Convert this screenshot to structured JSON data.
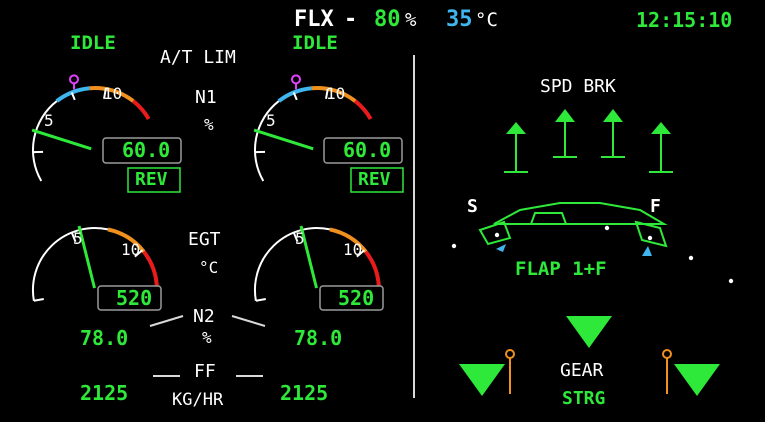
{
  "header": {
    "thrust_mode": "FLX",
    "dash": "-",
    "thrust_value": "80",
    "thrust_unit": "%",
    "flex_temp": "35",
    "temp_unit": "°C",
    "clock": "12:15:10"
  },
  "at_lim_label": "A/T LIM",
  "engines": [
    {
      "idle_label": "IDLE",
      "n1_value": "60.0",
      "n1_fraction": 0.32,
      "rev_label": "REV",
      "n1_scale": {
        "low": "5",
        "high": "10"
      },
      "egt_value": "520",
      "egt_scale": {
        "low": "5",
        "high": "10"
      },
      "n2_value": "78.0",
      "ff_value": "2125"
    },
    {
      "idle_label": "IDLE",
      "n1_value": "60.0",
      "n1_fraction": 0.32,
      "rev_label": "REV",
      "n1_scale": {
        "low": "5",
        "high": "10"
      },
      "egt_value": "520",
      "egt_scale": {
        "low": "5",
        "high": "10"
      },
      "n2_value": "78.0",
      "ff_value": "2125"
    }
  ],
  "center_labels": {
    "n1": "N1",
    "n1_unit": "%",
    "egt": "EGT",
    "egt_unit": "°C",
    "n2": "N2",
    "n2_unit": "%",
    "ff": "FF",
    "ff_unit": "KG/HR"
  },
  "speedbrake": {
    "label": "SPD BRK"
  },
  "flaps": {
    "slat_label": "S",
    "flap_label": "F",
    "config": "FLAP 1+F"
  },
  "gear": {
    "label": "GEAR",
    "status": "STRG"
  },
  "colors": {
    "green": "#2ee83a",
    "cyan": "#3fb6f0",
    "amber": "#f0901e",
    "red": "#e81c1c",
    "magenta": "#e040fb",
    "white": "#ffffff"
  }
}
